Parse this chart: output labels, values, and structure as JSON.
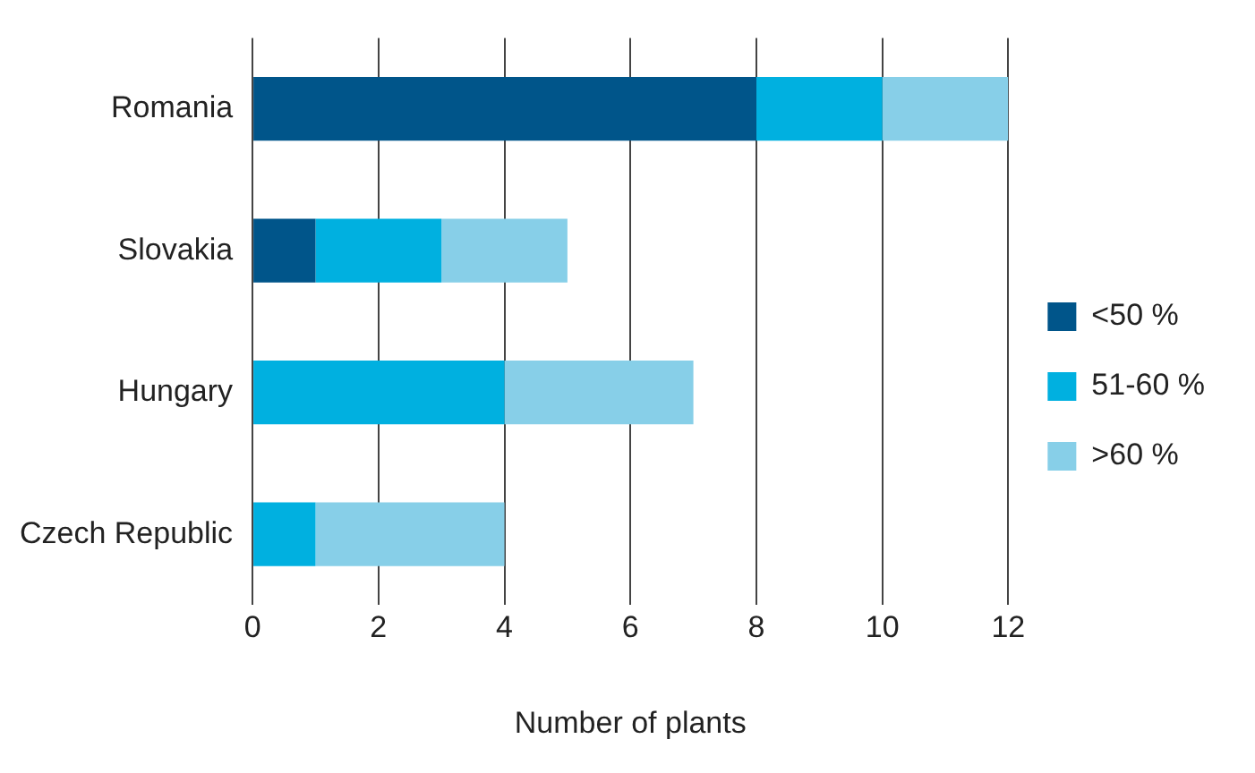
{
  "chart_data": {
    "type": "bar",
    "orientation": "horizontal",
    "stacked": true,
    "xlabel": "Number of plants",
    "categories": [
      "Romania",
      "Slovakia",
      "Hungary",
      "Czech Republic"
    ],
    "series": [
      {
        "name": "<50 %",
        "color": "#00558a",
        "values": [
          8,
          1,
          0,
          0
        ]
      },
      {
        "name": "51-60 %",
        "color": "#00b0e0",
        "values": [
          2,
          2,
          4,
          1
        ]
      },
      {
        "name": ">60 %",
        "color": "#87cfe8",
        "values": [
          2,
          2,
          3,
          3
        ]
      }
    ],
    "xlim": [
      0,
      12
    ],
    "xticks": [
      0,
      2,
      4,
      6,
      8,
      10,
      12
    ],
    "grid": "x",
    "legend": "right"
  }
}
